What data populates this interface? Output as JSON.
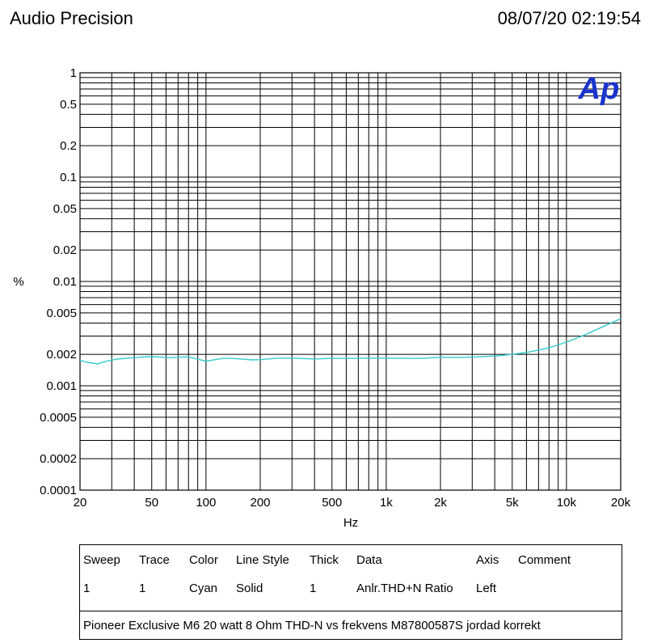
{
  "header": {
    "left_title": "Audio Precision",
    "timestamp": "08/07/20 02:19:54"
  },
  "logo": {
    "text": "Ap",
    "color": "#1a33cc"
  },
  "chart_data": {
    "type": "line",
    "xlabel": "Hz",
    "ylabel": "%",
    "xscale": "log",
    "yscale": "log",
    "xlim": [
      20,
      20000
    ],
    "ylim": [
      0.0001,
      1
    ],
    "grid": true,
    "x_tick_labels": [
      {
        "value": 20,
        "label": "20"
      },
      {
        "value": 50,
        "label": "50"
      },
      {
        "value": 100,
        "label": "100"
      },
      {
        "value": 200,
        "label": "200"
      },
      {
        "value": 500,
        "label": "500"
      },
      {
        "value": 1000,
        "label": "1k"
      },
      {
        "value": 2000,
        "label": "2k"
      },
      {
        "value": 5000,
        "label": "5k"
      },
      {
        "value": 10000,
        "label": "10k"
      },
      {
        "value": 20000,
        "label": "20k"
      }
    ],
    "y_tick_labels": [
      {
        "value": 1,
        "label": "1"
      },
      {
        "value": 0.5,
        "label": "0.5"
      },
      {
        "value": 0.2,
        "label": "0.2"
      },
      {
        "value": 0.1,
        "label": "0.1"
      },
      {
        "value": 0.05,
        "label": "0.05"
      },
      {
        "value": 0.02,
        "label": "0.02"
      },
      {
        "value": 0.01,
        "label": "0.01"
      },
      {
        "value": 0.005,
        "label": "0.005"
      },
      {
        "value": 0.002,
        "label": "0.002"
      },
      {
        "value": 0.001,
        "label": "0.001"
      },
      {
        "value": 0.0005,
        "label": "0.0005"
      },
      {
        "value": 0.0002,
        "label": "0.0002"
      },
      {
        "value": 0.0001,
        "label": "0.0001"
      }
    ],
    "series": [
      {
        "color": "#33cccc",
        "x": [
          20,
          22,
          25,
          28,
          32,
          36,
          40,
          45,
          50,
          56,
          63,
          71,
          80,
          90,
          100,
          112,
          125,
          140,
          160,
          180,
          200,
          250,
          300,
          400,
          500,
          630,
          800,
          1000,
          1250,
          1600,
          2000,
          2500,
          3150,
          4000,
          5000,
          6300,
          8000,
          10000,
          12500,
          16000,
          20000
        ],
        "y": [
          0.00175,
          0.00168,
          0.00162,
          0.00172,
          0.0018,
          0.00183,
          0.00186,
          0.00189,
          0.0019,
          0.00188,
          0.00186,
          0.00188,
          0.00189,
          0.0018,
          0.00172,
          0.00178,
          0.00183,
          0.00183,
          0.0018,
          0.00177,
          0.00178,
          0.00184,
          0.00184,
          0.00181,
          0.00183,
          0.00183,
          0.00184,
          0.00184,
          0.00183,
          0.00183,
          0.00188,
          0.00187,
          0.00189,
          0.00193,
          0.002,
          0.00212,
          0.00232,
          0.00262,
          0.00305,
          0.0037,
          0.0044
        ]
      }
    ]
  },
  "legend_table": {
    "headers": [
      "Sweep",
      "Trace",
      "Color",
      "Line Style",
      "Thick",
      "Data",
      "Axis",
      "Comment"
    ],
    "row": [
      "1",
      "1",
      "Cyan",
      "Solid",
      "1",
      "Anlr.THD+N Ratio",
      "Left",
      ""
    ],
    "comment": "Pioneer Exclusive M6 20 watt 8 Ohm THD-N vs frekvens M87800587S jordad korrekt"
  }
}
